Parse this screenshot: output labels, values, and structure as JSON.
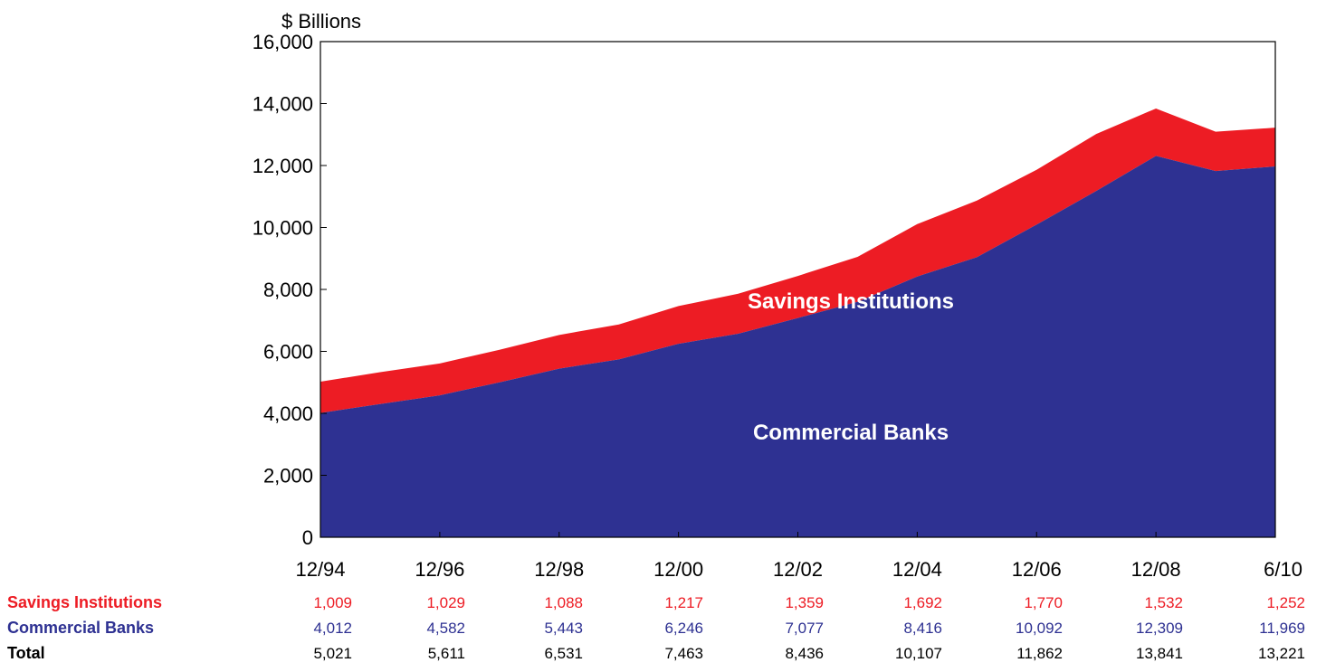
{
  "colors": {
    "savings": "#ED1C24",
    "commercial": "#2E3192",
    "total": "#000000",
    "frame": "#000000"
  },
  "chart_data": {
    "type": "area",
    "stacked": true,
    "y_unit_label": "$ Billions",
    "ylim": [
      0,
      16000
    ],
    "y_ticks": [
      0,
      2000,
      4000,
      6000,
      8000,
      10000,
      12000,
      14000,
      16000
    ],
    "y_tick_labels": [
      "0",
      "2,000",
      "4,000",
      "6,000",
      "8,000",
      "10,000",
      "12,000",
      "14,000",
      "16,000"
    ],
    "x_tick_labels": [
      "12/94",
      "12/96",
      "12/98",
      "12/00",
      "12/02",
      "12/04",
      "12/06",
      "12/08",
      "6/10"
    ],
    "area_labels": {
      "savings": "Savings Institutions",
      "commercial": "Commercial Banks"
    },
    "x": [
      "12/94",
      "12/95",
      "12/96",
      "12/97",
      "12/98",
      "12/99",
      "12/00",
      "12/01",
      "12/02",
      "12/03",
      "12/04",
      "12/05",
      "12/06",
      "12/07",
      "12/08",
      "12/09",
      "6/10"
    ],
    "series": [
      {
        "name": "Commercial Banks",
        "values": [
          4012,
          4300,
          4582,
          5000,
          5443,
          5740,
          6246,
          6570,
          7077,
          7600,
          8416,
          9040,
          10092,
          11180,
          12309,
          11820,
          11969
        ]
      },
      {
        "name": "Savings Institutions",
        "values": [
          1009,
          1030,
          1029,
          1050,
          1088,
          1130,
          1217,
          1290,
          1359,
          1450,
          1692,
          1830,
          1770,
          1840,
          1532,
          1270,
          1252
        ]
      }
    ],
    "table": {
      "columns": [
        "12/94",
        "12/96",
        "12/98",
        "12/00",
        "12/02",
        "12/04",
        "12/06",
        "12/08",
        "6/10"
      ],
      "rows": [
        {
          "label": "Savings Institutions",
          "key": "savings",
          "values": [
            "1,009",
            "1,029",
            "1,088",
            "1,217",
            "1,359",
            "1,692",
            "1,770",
            "1,532",
            "1,252"
          ]
        },
        {
          "label": "Commercial Banks",
          "key": "commercial",
          "values": [
            "4,012",
            "4,582",
            "5,443",
            "6,246",
            "7,077",
            "8,416",
            "10,092",
            "12,309",
            "11,969"
          ]
        },
        {
          "label": "Total",
          "key": "total",
          "values": [
            "5,021",
            "5,611",
            "6,531",
            "7,463",
            "8,436",
            "10,107",
            "11,862",
            "13,841",
            "13,221"
          ]
        }
      ]
    }
  }
}
